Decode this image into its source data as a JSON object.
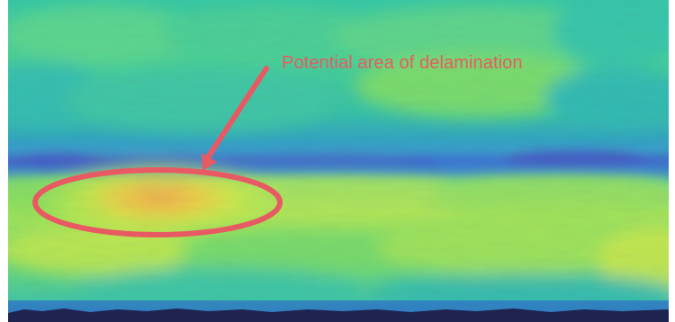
{
  "annotation": {
    "label": "Potential area of delamination"
  },
  "colors": {
    "annotation": "#e85a63",
    "scan_background": "#55d690",
    "low_amplitude_band": "#3f74d3",
    "high_amplitude_spot": "#f4c247",
    "bottom_edge": "#1e234f"
  },
  "scan": {
    "colormap": "viridis-like",
    "low_amplitude_band": "blue horizontal band",
    "highlighted_region": "yellow-orange region circled in red"
  }
}
